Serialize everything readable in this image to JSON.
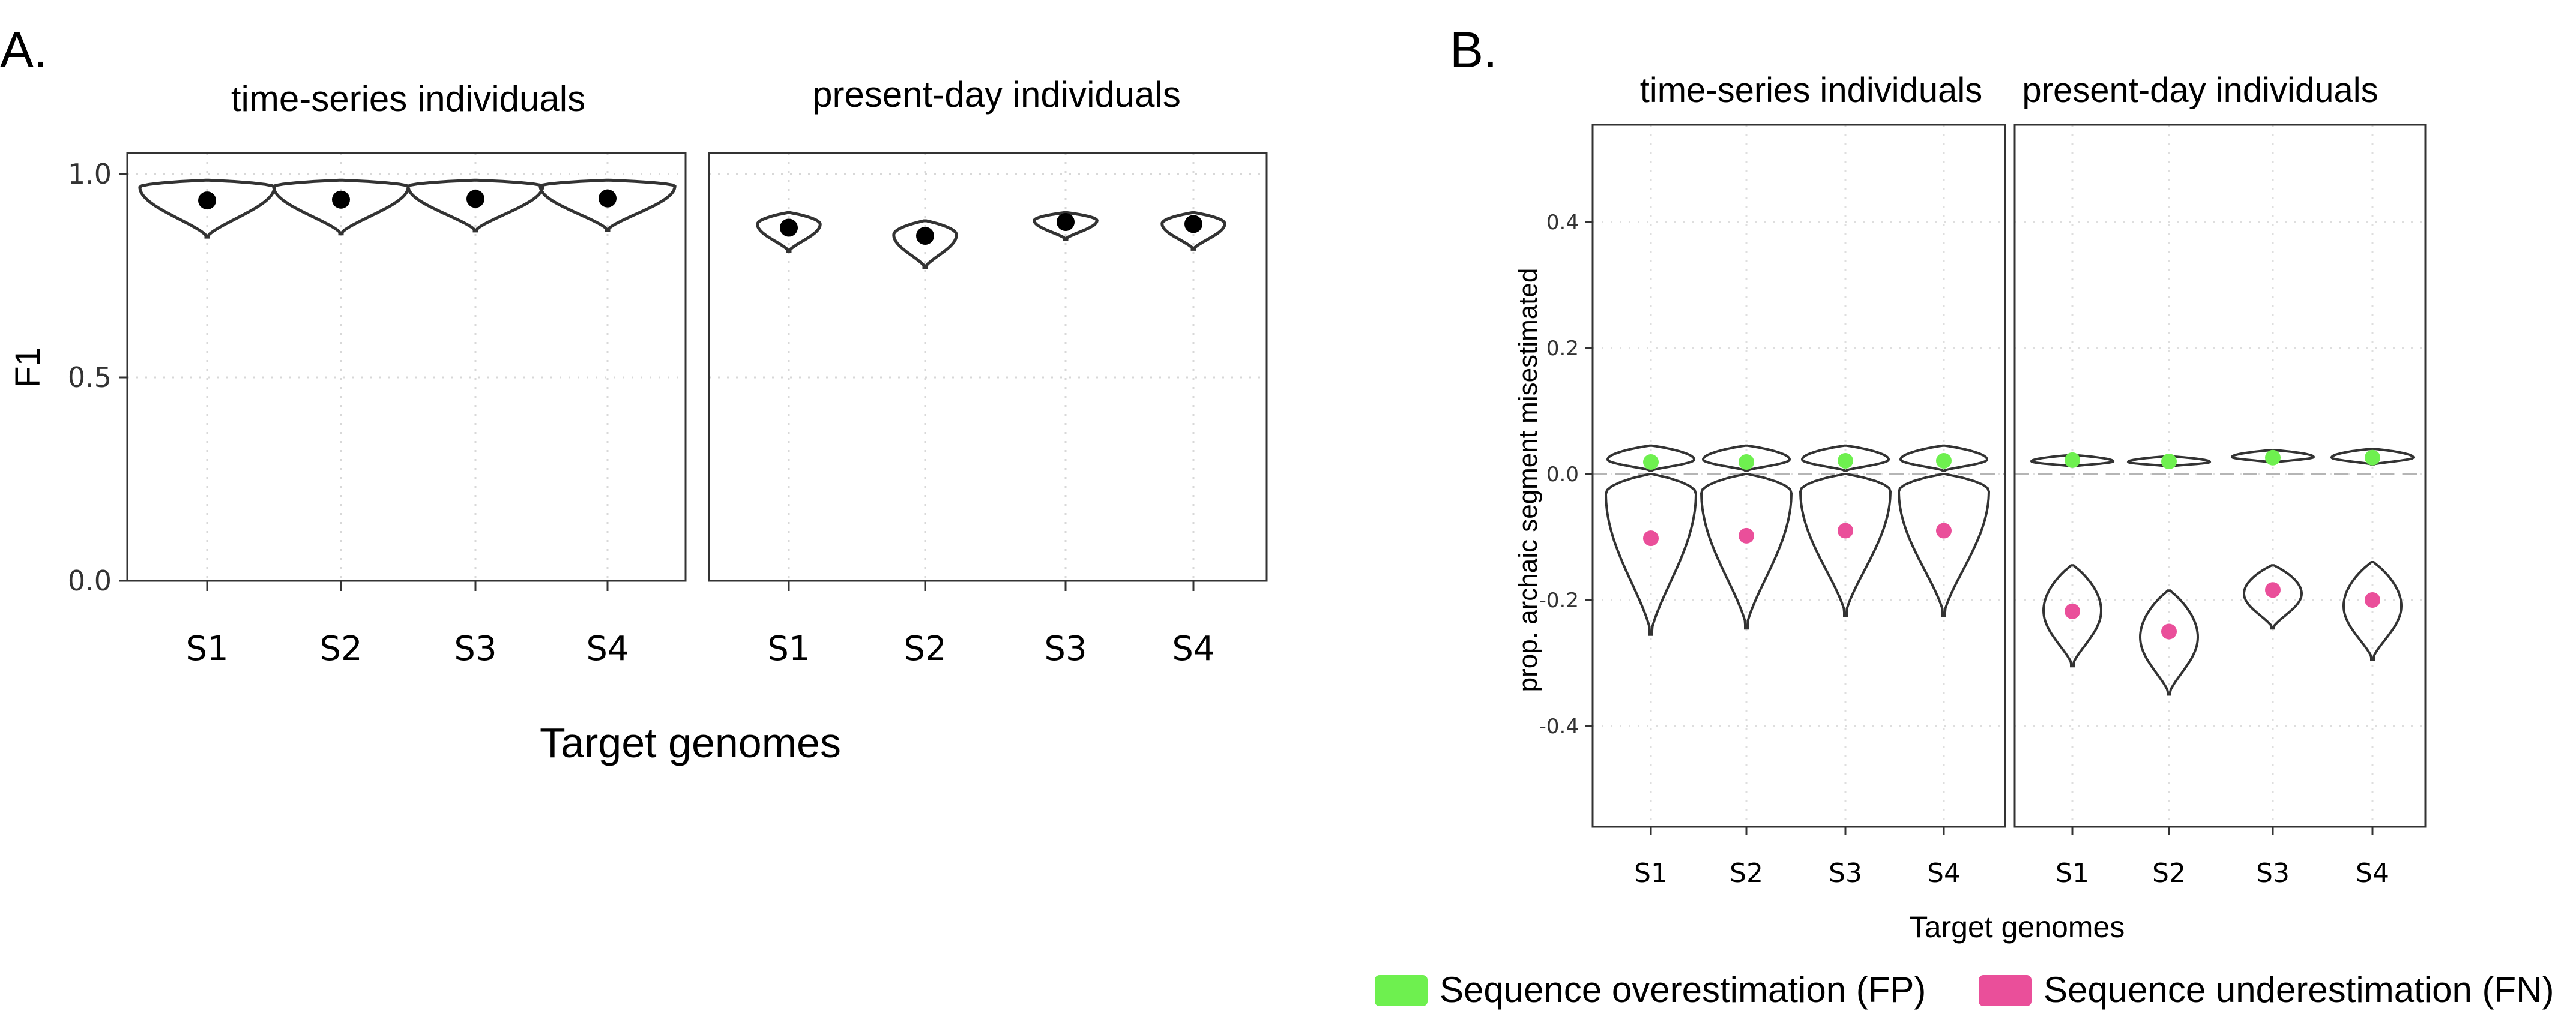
{
  "panels": {
    "a": {
      "letter": "A."
    },
    "b": {
      "letter": "B."
    }
  },
  "legend": {
    "items": [
      {
        "label": "Sequence overestimation (FP)",
        "color": "#6ef04f"
      },
      {
        "label": "Sequence underestimation (FN)",
        "color": "#ea4f9a"
      }
    ]
  },
  "chart_data": [
    {
      "type": "violin",
      "panel_letter": "A.",
      "xlabel": "Target genomes",
      "ylabel": "F1",
      "ylim": [
        0,
        1.05
      ],
      "yticks": [
        0.0,
        0.5,
        1.0
      ],
      "ytick_labels": [
        "0.0",
        "0.5",
        "1.0"
      ],
      "categories": [
        "S1",
        "S2",
        "S3",
        "S4"
      ],
      "grid": true,
      "facets": [
        {
          "title": "time-series individuals",
          "groups": [
            {
              "category": "S1",
              "min": 0.845,
              "max": 0.985,
              "mean": 0.935
            },
            {
              "category": "S2",
              "min": 0.853,
              "max": 0.985,
              "mean": 0.937
            },
            {
              "category": "S3",
              "min": 0.86,
              "max": 0.985,
              "mean": 0.939
            },
            {
              "category": "S4",
              "min": 0.862,
              "max": 0.985,
              "mean": 0.94
            }
          ]
        },
        {
          "title": "present-day individuals",
          "groups": [
            {
              "category": "S1",
              "min": 0.81,
              "max": 0.905,
              "mean": 0.868
            },
            {
              "category": "S2",
              "min": 0.77,
              "max": 0.885,
              "mean": 0.848
            },
            {
              "category": "S3",
              "min": 0.84,
              "max": 0.905,
              "mean": 0.882
            },
            {
              "category": "S4",
              "min": 0.815,
              "max": 0.905,
              "mean": 0.877
            }
          ]
        }
      ]
    },
    {
      "type": "violin",
      "panel_letter": "B.",
      "xlabel": "Target genomes",
      "ylabel": "prop. archaic segment misestimated",
      "ylim": [
        -0.55,
        0.55
      ],
      "yticks": [
        -0.4,
        -0.2,
        0.0,
        0.2,
        0.4
      ],
      "ytick_labels": [
        "-0.4",
        "-0.2",
        "0.0",
        "0.2",
        "0.4"
      ],
      "reference_line": 0.0,
      "categories": [
        "S1",
        "S2",
        "S3",
        "S4"
      ],
      "grid": true,
      "facets": [
        {
          "title": "time-series individuals",
          "groups": [
            {
              "category": "S1",
              "fp": {
                "min": 0.005,
                "max": 0.045,
                "mean": 0.019
              },
              "fn": {
                "min": -0.255,
                "max": 0.0,
                "mean": -0.102
              }
            },
            {
              "category": "S2",
              "fp": {
                "min": 0.005,
                "max": 0.045,
                "mean": 0.019
              },
              "fn": {
                "min": -0.245,
                "max": 0.0,
                "mean": -0.098
              }
            },
            {
              "category": "S3",
              "fp": {
                "min": 0.005,
                "max": 0.045,
                "mean": 0.021
              },
              "fn": {
                "min": -0.225,
                "max": 0.0,
                "mean": -0.09
              }
            },
            {
              "category": "S4",
              "fp": {
                "min": 0.005,
                "max": 0.045,
                "mean": 0.021
              },
              "fn": {
                "min": -0.225,
                "max": 0.0,
                "mean": -0.09
              }
            }
          ]
        },
        {
          "title": "present-day individuals",
          "groups": [
            {
              "category": "S1",
              "fp": {
                "min": 0.012,
                "max": 0.03,
                "mean": 0.022
              },
              "fn": {
                "min": -0.305,
                "max": -0.145,
                "mean": -0.218
              }
            },
            {
              "category": "S2",
              "fp": {
                "min": 0.012,
                "max": 0.028,
                "mean": 0.02
              },
              "fn": {
                "min": -0.35,
                "max": -0.185,
                "mean": -0.25
              }
            },
            {
              "category": "S3",
              "fp": {
                "min": 0.018,
                "max": 0.038,
                "mean": 0.026
              },
              "fn": {
                "min": -0.245,
                "max": -0.145,
                "mean": -0.184
              }
            },
            {
              "category": "S4",
              "fp": {
                "min": 0.015,
                "max": 0.04,
                "mean": 0.026
              },
              "fn": {
                "min": -0.295,
                "max": -0.14,
                "mean": -0.2
              }
            }
          ]
        }
      ]
    }
  ]
}
